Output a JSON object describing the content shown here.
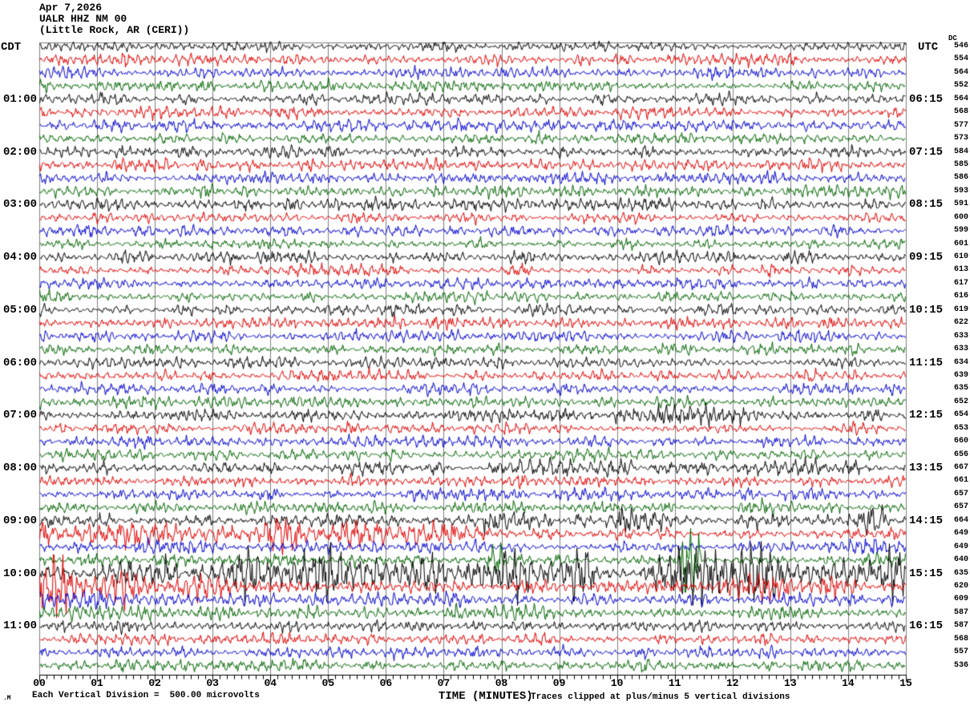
{
  "header": {
    "date": "Apr 7,2026",
    "station": "UALR HHZ NM 00",
    "location": "(Little Rock, AR (CERI))"
  },
  "left_axis": {
    "tz_label": "CDT",
    "hour_labels": [
      "01:00",
      "02:00",
      "03:00",
      "04:00",
      "05:00",
      "06:00",
      "07:00",
      "08:00",
      "09:00",
      "10:00",
      "11:00"
    ]
  },
  "right_axis": {
    "tz_label": "UTC",
    "dc_label": "DC",
    "hour_labels": [
      "06:15",
      "07:15",
      "08:15",
      "09:15",
      "10:15",
      "11:15",
      "12:15",
      "13:15",
      "14:15",
      "15:15",
      "16:15"
    ]
  },
  "x_axis": {
    "title": "TIME (MINUTES)",
    "tick_labels": [
      "00",
      "01",
      "02",
      "03",
      "04",
      "05",
      "06",
      "07",
      "08",
      "09",
      "10",
      "11",
      "12",
      "13",
      "14",
      "15"
    ]
  },
  "footer": {
    "mark": ".M",
    "scale_note": "Each Vertical Division =  500.00 microvolts",
    "clip_note": "Traces clipped at plus/minus 5 vertical divisions"
  },
  "colors": {
    "background": "#ffffff",
    "grid": "#808080",
    "axis": "#000000",
    "trace_cycle": [
      "#000000",
      "#e00000",
      "#0000cd",
      "#006400"
    ]
  },
  "chart_data": {
    "type": "line",
    "subtype": "helicorder_seismogram",
    "title": "UALR HHZ NM 00  Apr 7,2026  (Little Rock, AR (CERI))",
    "rows": 48,
    "minutes_per_row": 15,
    "x_range_minutes": [
      0,
      15
    ],
    "minor_ticks_per_minute": 8,
    "hour_label_start_row": 4,
    "hour_label_row_step": 4,
    "clip_divisions": 5,
    "microvolts_per_division": 500.0,
    "row_color_cycle": [
      "#000000",
      "#e00000",
      "#0000cd",
      "#006400"
    ],
    "dc_offsets": [
      546,
      554,
      564,
      552,
      564,
      568,
      577,
      573,
      584,
      585,
      586,
      593,
      591,
      600,
      599,
      601,
      610,
      613,
      617,
      616,
      619,
      622,
      633,
      633,
      634,
      639,
      635,
      652,
      654,
      653,
      660,
      656,
      667,
      661,
      657,
      657,
      664,
      649,
      649,
      640,
      635,
      620,
      609,
      587,
      587,
      568,
      557,
      536
    ],
    "amplitude_baseline": 1.0,
    "amp_overrides": {
      "36": 1.1,
      "37": 1.15,
      "40": 1.5,
      "41": 1.2,
      "43": 1.2
    },
    "events": {
      "28": [
        [
          9.5,
          12.2,
          1.6
        ]
      ],
      "32": [
        [
          8.3,
          10.3,
          1.8
        ],
        [
          12.8,
          14.2,
          1.5
        ]
      ],
      "35": [
        [
          12.5,
          12.75,
          2.2
        ]
      ],
      "36": [
        [
          7.7,
          8.9,
          2.9
        ],
        [
          9.8,
          10.8,
          2.6
        ],
        [
          13.95,
          14.65,
          2.6
        ]
      ],
      "37": [
        [
          0,
          3,
          1.9
        ],
        [
          3,
          7.2,
          2.7
        ]
      ],
      "38": [
        [
          1.8,
          3.2,
          1.4
        ],
        [
          13.2,
          15,
          1.4
        ]
      ],
      "39": [
        [
          5.2,
          6.0,
          1.5
        ],
        [
          7.75,
          8.0,
          2.8
        ],
        [
          11.1,
          11.45,
          7.5
        ]
      ],
      "40": [
        [
          1.2,
          2.6,
          1.8
        ],
        [
          2.6,
          5.6,
          2.8
        ],
        [
          5.6,
          7.9,
          2.0
        ],
        [
          7.9,
          9.6,
          3.0
        ],
        [
          10.4,
          15,
          3.0
        ]
      ],
      "41": [
        [
          0,
          0.8,
          4.5
        ],
        [
          0.8,
          2.0,
          3.0
        ],
        [
          2.0,
          3.3,
          2.2
        ],
        [
          3.3,
          4.5,
          1.5
        ],
        [
          11.3,
          13.8,
          1.6
        ]
      ],
      "42": [
        [
          0,
          1.2,
          1.4
        ],
        [
          5.5,
          7.5,
          1.5
        ]
      ]
    },
    "noise_seed": 1337
  }
}
